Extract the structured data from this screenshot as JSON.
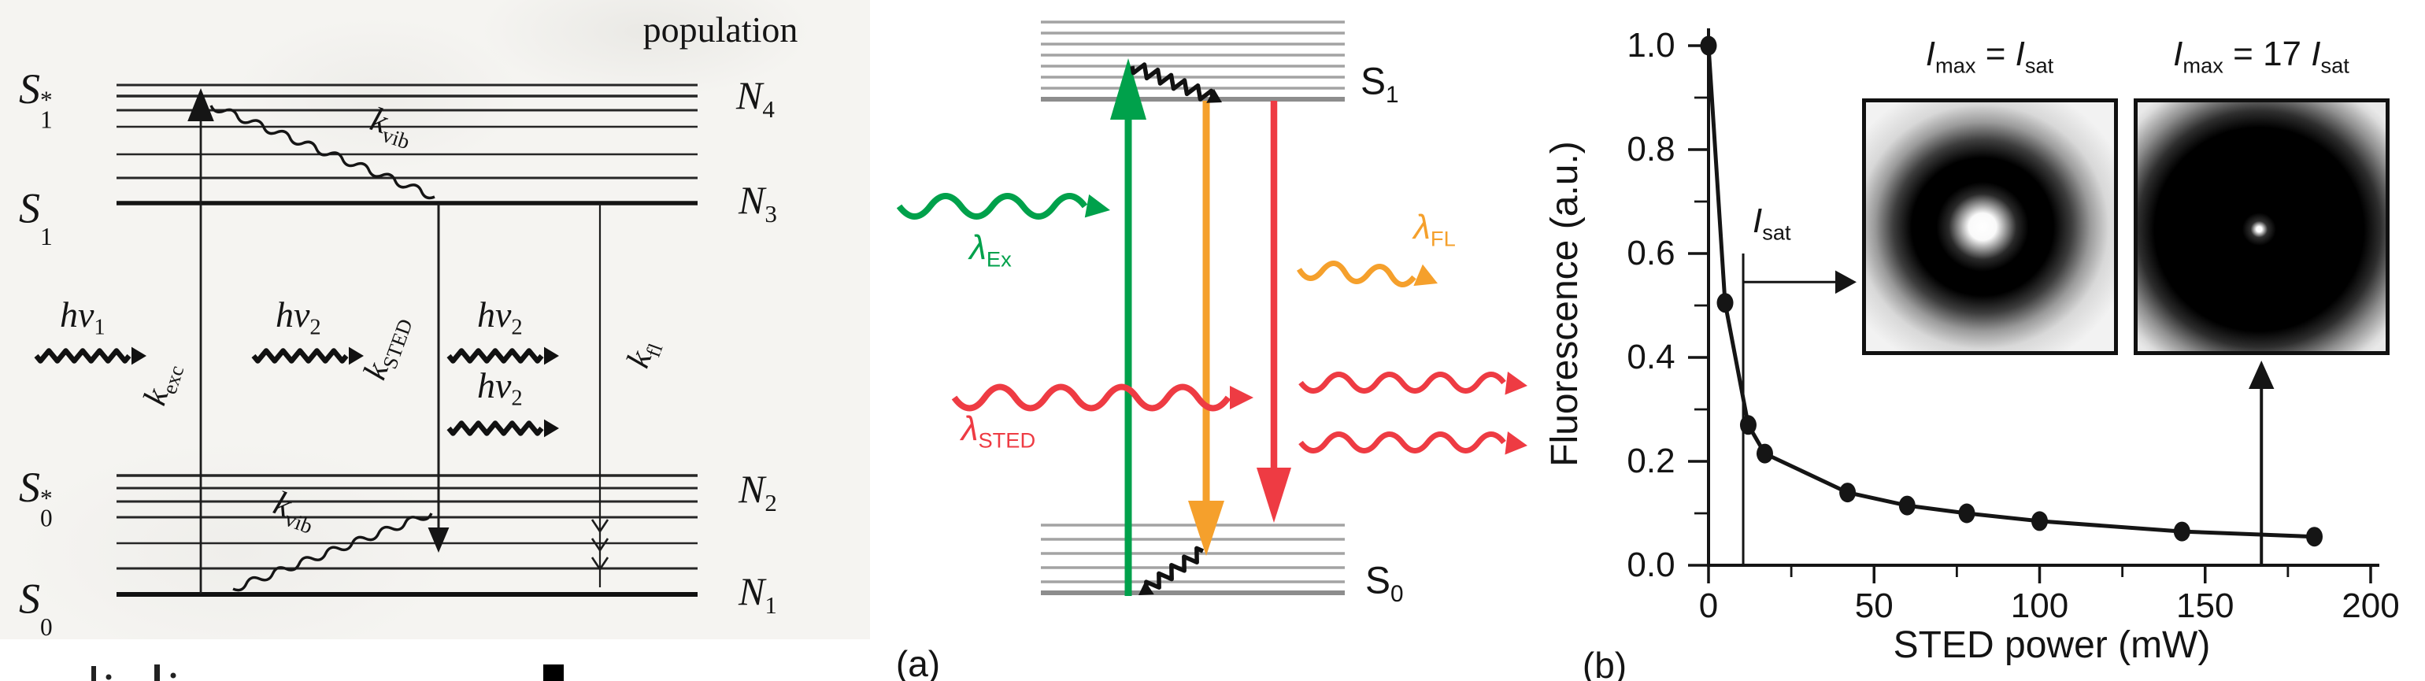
{
  "panel_labels": {
    "a": "(a)",
    "b": "(b)"
  },
  "jablonski": {
    "population_title": "population",
    "states": [
      {
        "base": "S",
        "sub": "1",
        "sup": "*"
      },
      {
        "base": "S",
        "sub": "1",
        "sup": ""
      },
      {
        "base": "S",
        "sub": "0",
        "sup": "*"
      },
      {
        "base": "S",
        "sub": "0",
        "sup": ""
      }
    ],
    "populations": [
      {
        "base": "N",
        "sub": "4"
      },
      {
        "base": "N",
        "sub": "3"
      },
      {
        "base": "N",
        "sub": "2"
      },
      {
        "base": "N",
        "sub": "1"
      }
    ],
    "rates": {
      "exc": {
        "base": "k",
        "sub": "exc"
      },
      "vib_upper": {
        "base": "k",
        "sub": "vib"
      },
      "sted": {
        "base": "k",
        "sub": "STED"
      },
      "vib_lower": {
        "base": "k",
        "sub": "vib"
      },
      "fl": {
        "base": "k",
        "sub": "fl"
      }
    },
    "photons": {
      "hv1": {
        "base": "hν",
        "sub": "1"
      },
      "hv2_a": {
        "base": "hν",
        "sub": "2"
      },
      "hv2_b": {
        "base": "hν",
        "sub": "2"
      },
      "hv2_c": {
        "base": "hν",
        "sub": "2"
      }
    }
  },
  "sted_diagram": {
    "s1": {
      "base": "S",
      "sub": "1"
    },
    "s0": {
      "base": "S",
      "sub": "0"
    },
    "lambda_ex": {
      "base": "λ",
      "sub": "Ex"
    },
    "lambda_fl": {
      "base": "λ",
      "sub": "FL"
    },
    "lambda_sted": {
      "base": "λ",
      "sub": "STED"
    },
    "colors": {
      "excitation_green": "#00a14b",
      "fluorescence_orange": "#f5a02c",
      "sted_red": "#ee3b43",
      "level_gray": "#a3a3a3",
      "level_gray_dark": "#8d8d8d"
    }
  },
  "chart_data": {
    "type": "line",
    "title": "",
    "xlabel": "STED power (mW)",
    "ylabel": "Fluorescence (a.u.)",
    "x_mw": [
      0,
      5,
      12,
      17,
      42,
      60,
      78,
      100,
      143,
      183
    ],
    "y_au": [
      1.0,
      0.505,
      0.27,
      0.215,
      0.14,
      0.115,
      0.1,
      0.085,
      0.065,
      0.055
    ],
    "xlim": [
      0,
      200
    ],
    "ylim": [
      0,
      1.0
    ],
    "x_tick_values": [
      0,
      50,
      100,
      150,
      200
    ],
    "x_tick_labels": [
      "0",
      "50",
      "100",
      "150",
      "200"
    ],
    "x_minor_values": [
      25,
      75,
      125,
      175
    ],
    "y_tick_values": [
      1.0,
      0.8,
      0.6,
      0.4,
      0.2,
      0.0
    ],
    "y_tick_labels": [
      "1.0",
      "0.8",
      "0.6",
      "0.4",
      "0.2",
      "0.0"
    ],
    "y_minor_values": [
      0.9,
      0.7,
      0.5,
      0.3,
      0.1
    ],
    "grid": false,
    "legend": "none",
    "line_color": "#151515",
    "marker": "filled-circle",
    "annotations": {
      "isat": {
        "label_base": "I",
        "label_sub": "sat",
        "x_mw": 10,
        "line_top_au": 0.6,
        "arrow_y_au": 0.545
      },
      "inset_pointer_arrow_x_mw": 167
    },
    "insets": [
      {
        "title_parts": {
          "i1": "I",
          "sub1": "max",
          "eq": " = ",
          "coef": "",
          "i2": "I",
          "sub2": "sat"
        }
      },
      {
        "title_parts": {
          "i1": "I",
          "sub1": "max",
          "eq": " = ",
          "coef": "17 ",
          "i2": "I",
          "sub2": "sat"
        }
      }
    ]
  }
}
